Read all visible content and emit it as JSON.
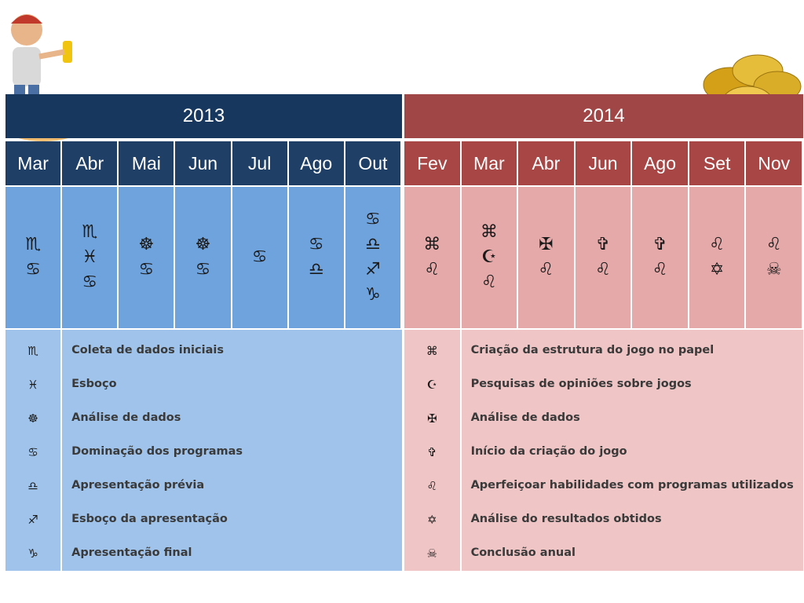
{
  "years": [
    {
      "year": "2013",
      "months": [
        {
          "label": "Mar",
          "symbols": [
            "♏",
            "♋"
          ]
        },
        {
          "label": "Abr",
          "symbols": [
            "♏",
            "♓",
            "♋"
          ]
        },
        {
          "label": "Mai",
          "symbols": [
            "☸",
            "♋"
          ]
        },
        {
          "label": "Jun",
          "symbols": [
            "☸",
            "♋"
          ]
        },
        {
          "label": "Jul",
          "symbols": [
            "♋"
          ]
        },
        {
          "label": "Ago",
          "symbols": [
            "♋",
            "♎"
          ]
        },
        {
          "label": "Out",
          "symbols": [
            "♋",
            "♎",
            "♐",
            "♑"
          ]
        }
      ],
      "legend": [
        {
          "symbol": "♏",
          "text": "Coleta de dados iniciais"
        },
        {
          "symbol": "♓",
          "text": "Esboço"
        },
        {
          "symbol": "☸",
          "text": "Análise de dados"
        },
        {
          "symbol": "♋",
          "text": "Dominação dos programas"
        },
        {
          "symbol": "♎",
          "text": "Apresentação prévia"
        },
        {
          "symbol": "♐",
          "text": "Esboço da apresentação"
        },
        {
          "symbol": "♑",
          "text": "Apresentação final"
        }
      ]
    },
    {
      "year": "2014",
      "months": [
        {
          "label": "Fev",
          "symbols": [
            "⌘",
            "♌"
          ]
        },
        {
          "label": "Mar",
          "symbols": [
            "⌘",
            "☪",
            "♌"
          ]
        },
        {
          "label": "Abr",
          "symbols": [
            "✠",
            "♌"
          ]
        },
        {
          "label": "Jun",
          "symbols": [
            "✞",
            "♌"
          ]
        },
        {
          "label": "Ago",
          "symbols": [
            "✞",
            "♌"
          ]
        },
        {
          "label": "Set",
          "symbols": [
            "♌",
            "✡"
          ]
        },
        {
          "label": "Nov",
          "symbols": [
            "♌",
            "☠"
          ]
        }
      ],
      "legend": [
        {
          "symbol": "⌘",
          "text": "Criação da estrutura do jogo no papel"
        },
        {
          "symbol": "☪",
          "text": "Pesquisas de opiniões sobre jogos"
        },
        {
          "symbol": "✠",
          "text": "Análise de dados"
        },
        {
          "symbol": "✞",
          "text": "Início da criação do jogo"
        },
        {
          "symbol": "♌",
          "text": "Aperfeiçoar habilidades com programas utilizados"
        },
        {
          "symbol": "✡",
          "text": "Análise do resultados obtidos"
        },
        {
          "symbol": "☠",
          "text": "Conclusão anual"
        }
      ]
    }
  ]
}
